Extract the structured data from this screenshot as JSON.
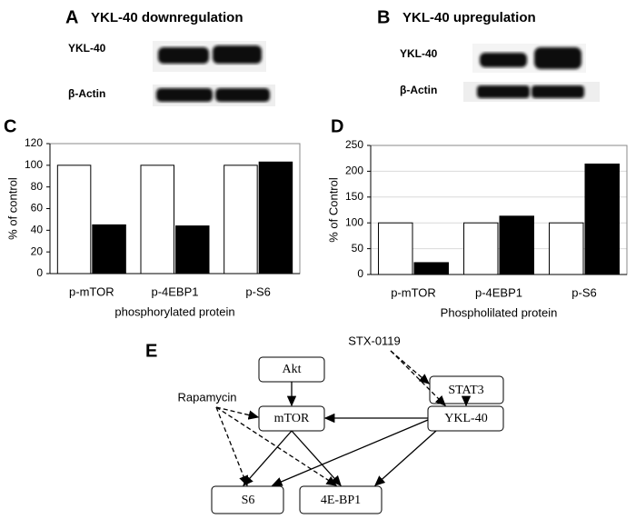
{
  "panel_a": {
    "letter": "A",
    "title": "YKL-40 downregulation",
    "rows": [
      "YKL-40",
      "β-Actin"
    ]
  },
  "panel_b": {
    "letter": "B",
    "title": "YKL-40 upregulation",
    "rows": [
      "YKL-40",
      "β-Actin"
    ]
  },
  "chart_data": [
    {
      "type": "bar",
      "letter": "C",
      "categories": [
        "p-mTOR",
        "p-4EBP1",
        "p-S6"
      ],
      "series": [
        {
          "color": "#ffffff",
          "values": [
            100,
            100,
            100
          ]
        },
        {
          "color": "#000000",
          "values": [
            45,
            44,
            103
          ]
        }
      ],
      "ylim": [
        0,
        120
      ],
      "yticks": [
        0,
        20,
        40,
        60,
        80,
        100,
        120
      ],
      "grid": false,
      "y_label": "% of control",
      "x_label": "phosphorylated protein"
    },
    {
      "type": "bar",
      "letter": "D",
      "categories": [
        "p-mTOR",
        "p-4EBP1",
        "p-S6"
      ],
      "series": [
        {
          "color": "#ffffff",
          "values": [
            100,
            100,
            100
          ]
        },
        {
          "color": "#000000",
          "values": [
            23,
            113,
            214
          ]
        }
      ],
      "ylim": [
        0,
        250
      ],
      "yticks": [
        0,
        50,
        100,
        150,
        200,
        250
      ],
      "grid": true,
      "y_label": "% of Control",
      "x_label": "Phospholilated protein"
    }
  ],
  "diagram": {
    "letter": "E",
    "nodes": [
      "Akt",
      "mTOR",
      "STAT3",
      "YKL-40",
      "S6",
      "4E-BP1"
    ],
    "inhibitors": [
      "STX-0119",
      "Rapamycin"
    ]
  }
}
